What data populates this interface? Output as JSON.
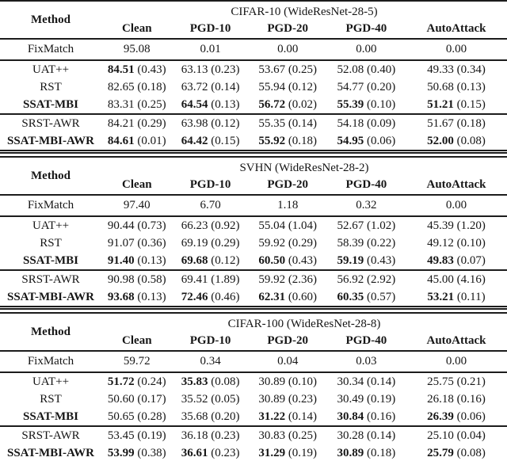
{
  "page": {
    "background": "#ffffff",
    "text_color": "#161616",
    "rule_color": "#1c1c1c"
  },
  "tables": [
    {
      "method_header": "Method",
      "dataset_header": "CIFAR-10 (WideResNet-28-5)",
      "columns": [
        "Clean",
        "PGD-10",
        "PGD-20",
        "PGD-40",
        "AutoAttack"
      ],
      "sections": [
        {
          "rows": [
            {
              "method": "FixMatch",
              "method_bold": false,
              "cells": [
                {
                  "v": "95.08",
                  "b": false
                },
                {
                  "v": "0.01",
                  "b": false
                },
                {
                  "v": "0.00",
                  "b": false
                },
                {
                  "v": "0.00",
                  "b": false
                },
                {
                  "v": "0.00",
                  "b": false
                }
              ]
            }
          ]
        },
        {
          "rows": [
            {
              "method": "UAT++",
              "method_bold": false,
              "cells": [
                {
                  "v": "84.51",
                  "s": "0.43",
                  "b": true
                },
                {
                  "v": "63.13",
                  "s": "0.23",
                  "b": false
                },
                {
                  "v": "53.67",
                  "s": "0.25",
                  "b": false
                },
                {
                  "v": "52.08",
                  "s": "0.40",
                  "b": false
                },
                {
                  "v": "49.33",
                  "s": "0.34",
                  "b": false
                }
              ]
            },
            {
              "method": "RST",
              "method_bold": false,
              "cells": [
                {
                  "v": "82.65",
                  "s": "0.18",
                  "b": false
                },
                {
                  "v": "63.72",
                  "s": "0.14",
                  "b": false
                },
                {
                  "v": "55.94",
                  "s": "0.12",
                  "b": false
                },
                {
                  "v": "54.77",
                  "s": "0.20",
                  "b": false
                },
                {
                  "v": "50.68",
                  "s": "0.13",
                  "b": false
                }
              ]
            },
            {
              "method": "SSAT-MBI",
              "method_bold": true,
              "cells": [
                {
                  "v": "83.31",
                  "s": "0.25",
                  "b": false
                },
                {
                  "v": "64.54",
                  "s": "0.13",
                  "b": true
                },
                {
                  "v": "56.72",
                  "s": "0.02",
                  "b": true
                },
                {
                  "v": "55.39",
                  "s": "0.10",
                  "b": true
                },
                {
                  "v": "51.21",
                  "s": "0.15",
                  "b": true
                }
              ]
            }
          ]
        },
        {
          "rows": [
            {
              "method": "SRST-AWR",
              "method_bold": false,
              "cells": [
                {
                  "v": "84.21",
                  "s": "0.29",
                  "b": false
                },
                {
                  "v": "63.98",
                  "s": "0.12",
                  "b": false
                },
                {
                  "v": "55.35",
                  "s": "0.14",
                  "b": false
                },
                {
                  "v": "54.18",
                  "s": "0.09",
                  "b": false
                },
                {
                  "v": "51.67",
                  "s": "0.18",
                  "b": false
                }
              ]
            },
            {
              "method": "SSAT-MBI-AWR",
              "method_bold": true,
              "cells": [
                {
                  "v": "84.61",
                  "s": "0.01",
                  "b": true
                },
                {
                  "v": "64.42",
                  "s": "0.15",
                  "b": true
                },
                {
                  "v": "55.92",
                  "s": "0.18",
                  "b": true
                },
                {
                  "v": "54.95",
                  "s": "0.06",
                  "b": true
                },
                {
                  "v": "52.00",
                  "s": "0.08",
                  "b": true
                }
              ]
            }
          ]
        }
      ]
    },
    {
      "method_header": "Method",
      "dataset_header": "SVHN (WideResNet-28-2)",
      "columns": [
        "Clean",
        "PGD-10",
        "PGD-20",
        "PGD-40",
        "AutoAttack"
      ],
      "sections": [
        {
          "rows": [
            {
              "method": "FixMatch",
              "method_bold": false,
              "cells": [
                {
                  "v": "97.40",
                  "b": false
                },
                {
                  "v": "6.70",
                  "b": false
                },
                {
                  "v": "1.18",
                  "b": false
                },
                {
                  "v": "0.32",
                  "b": false
                },
                {
                  "v": "0.00",
                  "b": false
                }
              ]
            }
          ]
        },
        {
          "rows": [
            {
              "method": "UAT++",
              "method_bold": false,
              "cells": [
                {
                  "v": "90.44",
                  "s": "0.73",
                  "b": false
                },
                {
                  "v": "66.23",
                  "s": "0.92",
                  "b": false
                },
                {
                  "v": "55.04",
                  "s": "1.04",
                  "b": false
                },
                {
                  "v": "52.67",
                  "s": "1.02",
                  "b": false
                },
                {
                  "v": "45.39",
                  "s": "1.20",
                  "b": false
                }
              ]
            },
            {
              "method": "RST",
              "method_bold": false,
              "cells": [
                {
                  "v": "91.07",
                  "s": "0.36",
                  "b": false
                },
                {
                  "v": "69.19",
                  "s": "0.29",
                  "b": false
                },
                {
                  "v": "59.92",
                  "s": "0.29",
                  "b": false
                },
                {
                  "v": "58.39",
                  "s": "0.22",
                  "b": false
                },
                {
                  "v": "49.12",
                  "s": "0.10",
                  "b": false
                }
              ]
            },
            {
              "method": "SSAT-MBI",
              "method_bold": true,
              "cells": [
                {
                  "v": "91.40",
                  "s": "0.13",
                  "b": true
                },
                {
                  "v": "69.68",
                  "s": "0.12",
                  "b": true
                },
                {
                  "v": "60.50",
                  "s": "0.43",
                  "b": true
                },
                {
                  "v": "59.19",
                  "s": "0.43",
                  "b": true
                },
                {
                  "v": "49.83",
                  "s": "0.07",
                  "b": true
                }
              ]
            }
          ]
        },
        {
          "rows": [
            {
              "method": "SRST-AWR",
              "method_bold": false,
              "cells": [
                {
                  "v": "90.98",
                  "s": "0.58",
                  "b": false
                },
                {
                  "v": "69.41",
                  "s": "1.89",
                  "b": false
                },
                {
                  "v": "59.92",
                  "s": "2.36",
                  "b": false
                },
                {
                  "v": "56.92",
                  "s": "2.92",
                  "b": false
                },
                {
                  "v": "45.00",
                  "s": "4.16",
                  "b": false
                }
              ]
            },
            {
              "method": "SSAT-MBI-AWR",
              "method_bold": true,
              "cells": [
                {
                  "v": "93.68",
                  "s": "0.13",
                  "b": true
                },
                {
                  "v": "72.46",
                  "s": "0.46",
                  "b": true
                },
                {
                  "v": "62.31",
                  "s": "0.60",
                  "b": true
                },
                {
                  "v": "60.35",
                  "s": "0.57",
                  "b": true
                },
                {
                  "v": "53.21",
                  "s": "0.11",
                  "b": true
                }
              ]
            }
          ]
        }
      ]
    },
    {
      "method_header": "Method",
      "dataset_header": "CIFAR-100 (WideResNet-28-8)",
      "columns": [
        "Clean",
        "PGD-10",
        "PGD-20",
        "PGD-40",
        "AutoAttack"
      ],
      "sections": [
        {
          "rows": [
            {
              "method": "FixMatch",
              "method_bold": false,
              "cells": [
                {
                  "v": "59.72",
                  "b": false
                },
                {
                  "v": "0.34",
                  "b": false
                },
                {
                  "v": "0.04",
                  "b": false
                },
                {
                  "v": "0.03",
                  "b": false
                },
                {
                  "v": "0.00",
                  "b": false
                }
              ]
            }
          ]
        },
        {
          "rows": [
            {
              "method": "UAT++",
              "method_bold": false,
              "cells": [
                {
                  "v": "51.72",
                  "s": "0.24",
                  "b": true
                },
                {
                  "v": "35.83",
                  "s": "0.08",
                  "b": true
                },
                {
                  "v": "30.89",
                  "s": "0.10",
                  "b": false
                },
                {
                  "v": "30.34",
                  "s": "0.14",
                  "b": false
                },
                {
                  "v": "25.75",
                  "s": "0.21",
                  "b": false
                }
              ]
            },
            {
              "method": "RST",
              "method_bold": false,
              "cells": [
                {
                  "v": "50.60",
                  "s": "0.17",
                  "b": false
                },
                {
                  "v": "35.52",
                  "s": "0.05",
                  "b": false
                },
                {
                  "v": "30.89",
                  "s": "0.23",
                  "b": false
                },
                {
                  "v": "30.49",
                  "s": "0.19",
                  "b": false
                },
                {
                  "v": "26.18",
                  "s": "0.16",
                  "b": false
                }
              ]
            },
            {
              "method": "SSAT-MBI",
              "method_bold": true,
              "cells": [
                {
                  "v": "50.65",
                  "s": "0.28",
                  "b": false
                },
                {
                  "v": "35.68",
                  "s": "0.20",
                  "b": false
                },
                {
                  "v": "31.22",
                  "s": "0.14",
                  "b": true
                },
                {
                  "v": "30.84",
                  "s": "0.16",
                  "b": true
                },
                {
                  "v": "26.39",
                  "s": "0.06",
                  "b": true
                }
              ]
            }
          ]
        },
        {
          "rows": [
            {
              "method": "SRST-AWR",
              "method_bold": false,
              "cells": [
                {
                  "v": "53.45",
                  "s": "0.19",
                  "b": false
                },
                {
                  "v": "36.18",
                  "s": "0.23",
                  "b": false
                },
                {
                  "v": "30.83",
                  "s": "0.25",
                  "b": false
                },
                {
                  "v": "30.28",
                  "s": "0.14",
                  "b": false
                },
                {
                  "v": "25.10",
                  "s": "0.04",
                  "b": false
                }
              ]
            },
            {
              "method": "SSAT-MBI-AWR",
              "method_bold": true,
              "cells": [
                {
                  "v": "53.99",
                  "s": "0.38",
                  "b": true
                },
                {
                  "v": "36.61",
                  "s": "0.23",
                  "b": true
                },
                {
                  "v": "31.29",
                  "s": "0.19",
                  "b": true
                },
                {
                  "v": "30.89",
                  "s": "0.18",
                  "b": true
                },
                {
                  "v": "25.79",
                  "s": "0.08",
                  "b": true
                }
              ]
            }
          ]
        }
      ]
    }
  ]
}
